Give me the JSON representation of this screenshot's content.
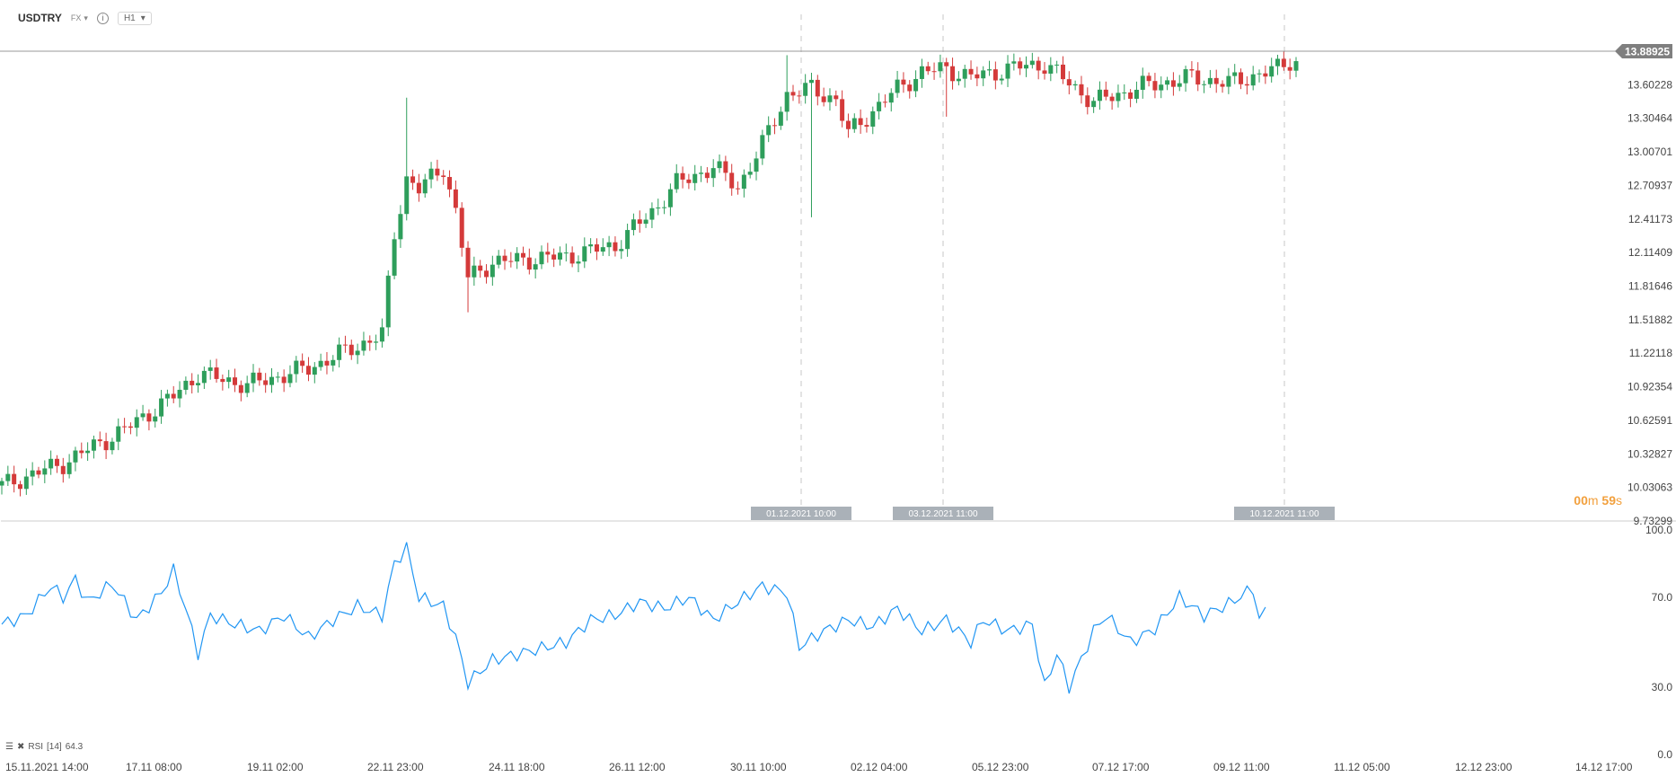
{
  "toolbar": {
    "symbol": "USDTRY",
    "market": "FX",
    "info_icon": "info-icon",
    "timeframe": "H1"
  },
  "last_price": "13.88925",
  "countdown": {
    "minutes": "00",
    "minutes_unit": "m",
    "seconds": "59",
    "seconds_unit": "s"
  },
  "time_markers": [
    "01.12.2021 10:00",
    "03.12.2021 11:00",
    "10.12.2021 11:00"
  ],
  "rsi_legend": {
    "name": "RSI",
    "period": "[14]",
    "value": "64.3"
  },
  "colors": {
    "up": "#2e9e5b",
    "down": "#d43a3a",
    "rsi_line": "#2196f3",
    "price_tag": "#7f7f7f",
    "marker_tag": "#aab1b8"
  },
  "chart_data": [
    {
      "type": "candlestick",
      "title": "USDTRY",
      "price_axis_ticks": [
        "13.88925",
        "13.60228",
        "13.30464",
        "13.00701",
        "12.70937",
        "12.41173",
        "12.11409",
        "11.81646",
        "11.51882",
        "11.22118",
        "10.92354",
        "10.62591",
        "10.32827",
        "10.03063",
        "9.73299"
      ],
      "time_axis_labels": [
        "15.11.2021  14:00",
        "17.11  08:00",
        "19.11  02:00",
        "22.11  23:00",
        "24.11  18:00",
        "26.11  12:00",
        "30.11  10:00",
        "02.12  04:00",
        "05.12  23:00",
        "07.12  17:00",
        "09.12  11:00",
        "11.12  05:00",
        "12.12  23:00",
        "14.12  17:00"
      ],
      "ylim": [
        9.73299,
        14.0
      ],
      "close_path": [
        [
          0,
          10.05
        ],
        [
          10,
          10.25
        ],
        [
          20,
          10.55
        ],
        [
          28,
          10.85
        ],
        [
          32,
          11.05
        ],
        [
          40,
          10.95
        ],
        [
          50,
          11.1
        ],
        [
          62,
          11.4
        ],
        [
          64,
          12.3
        ],
        [
          66,
          12.8
        ],
        [
          68,
          12.7
        ],
        [
          72,
          12.9
        ],
        [
          74,
          12.5
        ],
        [
          76,
          11.9
        ],
        [
          80,
          12.05
        ],
        [
          92,
          12.1
        ],
        [
          100,
          12.2
        ],
        [
          106,
          12.5
        ],
        [
          110,
          12.75
        ],
        [
          116,
          12.9
        ],
        [
          120,
          12.72
        ],
        [
          124,
          13.1
        ],
        [
          128,
          13.55
        ],
        [
          132,
          13.6
        ],
        [
          136,
          13.5
        ],
        [
          138,
          13.2
        ],
        [
          142,
          13.4
        ],
        [
          146,
          13.6
        ],
        [
          150,
          13.75
        ],
        [
          154,
          13.78
        ],
        [
          158,
          13.7
        ],
        [
          166,
          13.8
        ],
        [
          170,
          13.82
        ],
        [
          174,
          13.65
        ],
        [
          178,
          13.48
        ],
        [
          186,
          13.62
        ],
        [
          194,
          13.7
        ],
        [
          200,
          13.65
        ],
        [
          208,
          13.78
        ],
        [
          210,
          13.85
        ]
      ],
      "wicks": [
        [
          66,
          13.52
        ],
        [
          76,
          11.6
        ],
        [
          128,
          13.9
        ],
        [
          132,
          12.45
        ],
        [
          154,
          13.35
        ]
      ]
    },
    {
      "type": "line",
      "title": "RSI [14]",
      "ylim": [
        0,
        100
      ],
      "yticks": [
        "100.0",
        "70.0",
        "30.0",
        "0.0"
      ],
      "values": [
        [
          0,
          58
        ],
        [
          4,
          62
        ],
        [
          8,
          75
        ],
        [
          10,
          70
        ],
        [
          12,
          78
        ],
        [
          14,
          68
        ],
        [
          18,
          76
        ],
        [
          22,
          60
        ],
        [
          26,
          72
        ],
        [
          28,
          82
        ],
        [
          30,
          65
        ],
        [
          32,
          45
        ],
        [
          34,
          62
        ],
        [
          38,
          58
        ],
        [
          42,
          55
        ],
        [
          46,
          62
        ],
        [
          50,
          52
        ],
        [
          54,
          60
        ],
        [
          58,
          66
        ],
        [
          62,
          62
        ],
        [
          64,
          85
        ],
        [
          66,
          92
        ],
        [
          68,
          70
        ],
        [
          72,
          66
        ],
        [
          74,
          52
        ],
        [
          76,
          32
        ],
        [
          80,
          42
        ],
        [
          86,
          46
        ],
        [
          92,
          50
        ],
        [
          96,
          60
        ],
        [
          100,
          62
        ],
        [
          104,
          68
        ],
        [
          108,
          65
        ],
        [
          112,
          70
        ],
        [
          116,
          60
        ],
        [
          120,
          68
        ],
        [
          124,
          75
        ],
        [
          128,
          72
        ],
        [
          130,
          48
        ],
        [
          134,
          55
        ],
        [
          138,
          60
        ],
        [
          142,
          57
        ],
        [
          146,
          65
        ],
        [
          150,
          55
        ],
        [
          154,
          60
        ],
        [
          158,
          50
        ],
        [
          160,
          60
        ],
        [
          164,
          55
        ],
        [
          168,
          58
        ],
        [
          170,
          30
        ],
        [
          172,
          45
        ],
        [
          174,
          30
        ],
        [
          178,
          55
        ],
        [
          180,
          62
        ],
        [
          184,
          50
        ],
        [
          188,
          56
        ],
        [
          192,
          70
        ],
        [
          196,
          62
        ],
        [
          200,
          67
        ],
        [
          204,
          74
        ],
        [
          205,
          60
        ],
        [
          206,
          64
        ]
      ]
    }
  ]
}
